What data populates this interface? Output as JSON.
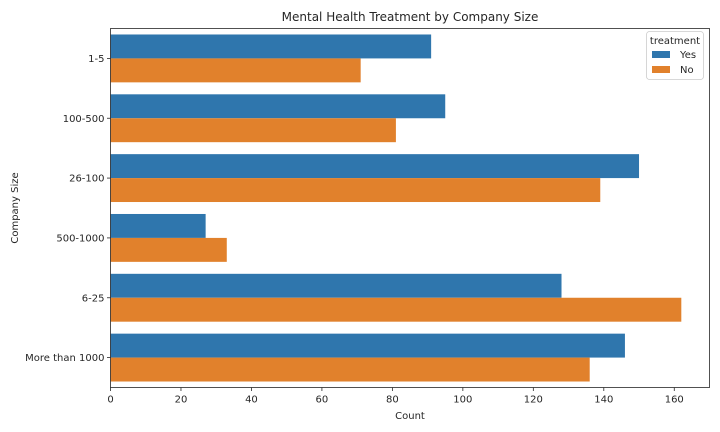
{
  "chart_data": {
    "type": "bar",
    "orientation": "horizontal",
    "title": "Mental Health Treatment by Company Size",
    "xlabel": "Count",
    "ylabel": "Company Size",
    "categories": [
      "1-5",
      "100-500",
      "26-100",
      "500-1000",
      "6-25",
      "More than 1000"
    ],
    "series": [
      {
        "name": "Yes",
        "values": [
          91,
          95,
          150,
          27,
          128,
          146
        ],
        "color": "#2f76ad"
      },
      {
        "name": "No",
        "values": [
          71,
          81,
          139,
          33,
          162,
          136
        ],
        "color": "#e1812c"
      }
    ],
    "xlim": [
      0,
      170
    ],
    "xticks": [
      0,
      20,
      40,
      60,
      80,
      100,
      120,
      140,
      160
    ],
    "grid": false,
    "legend": {
      "title": "treatment",
      "position": "top-right"
    }
  }
}
